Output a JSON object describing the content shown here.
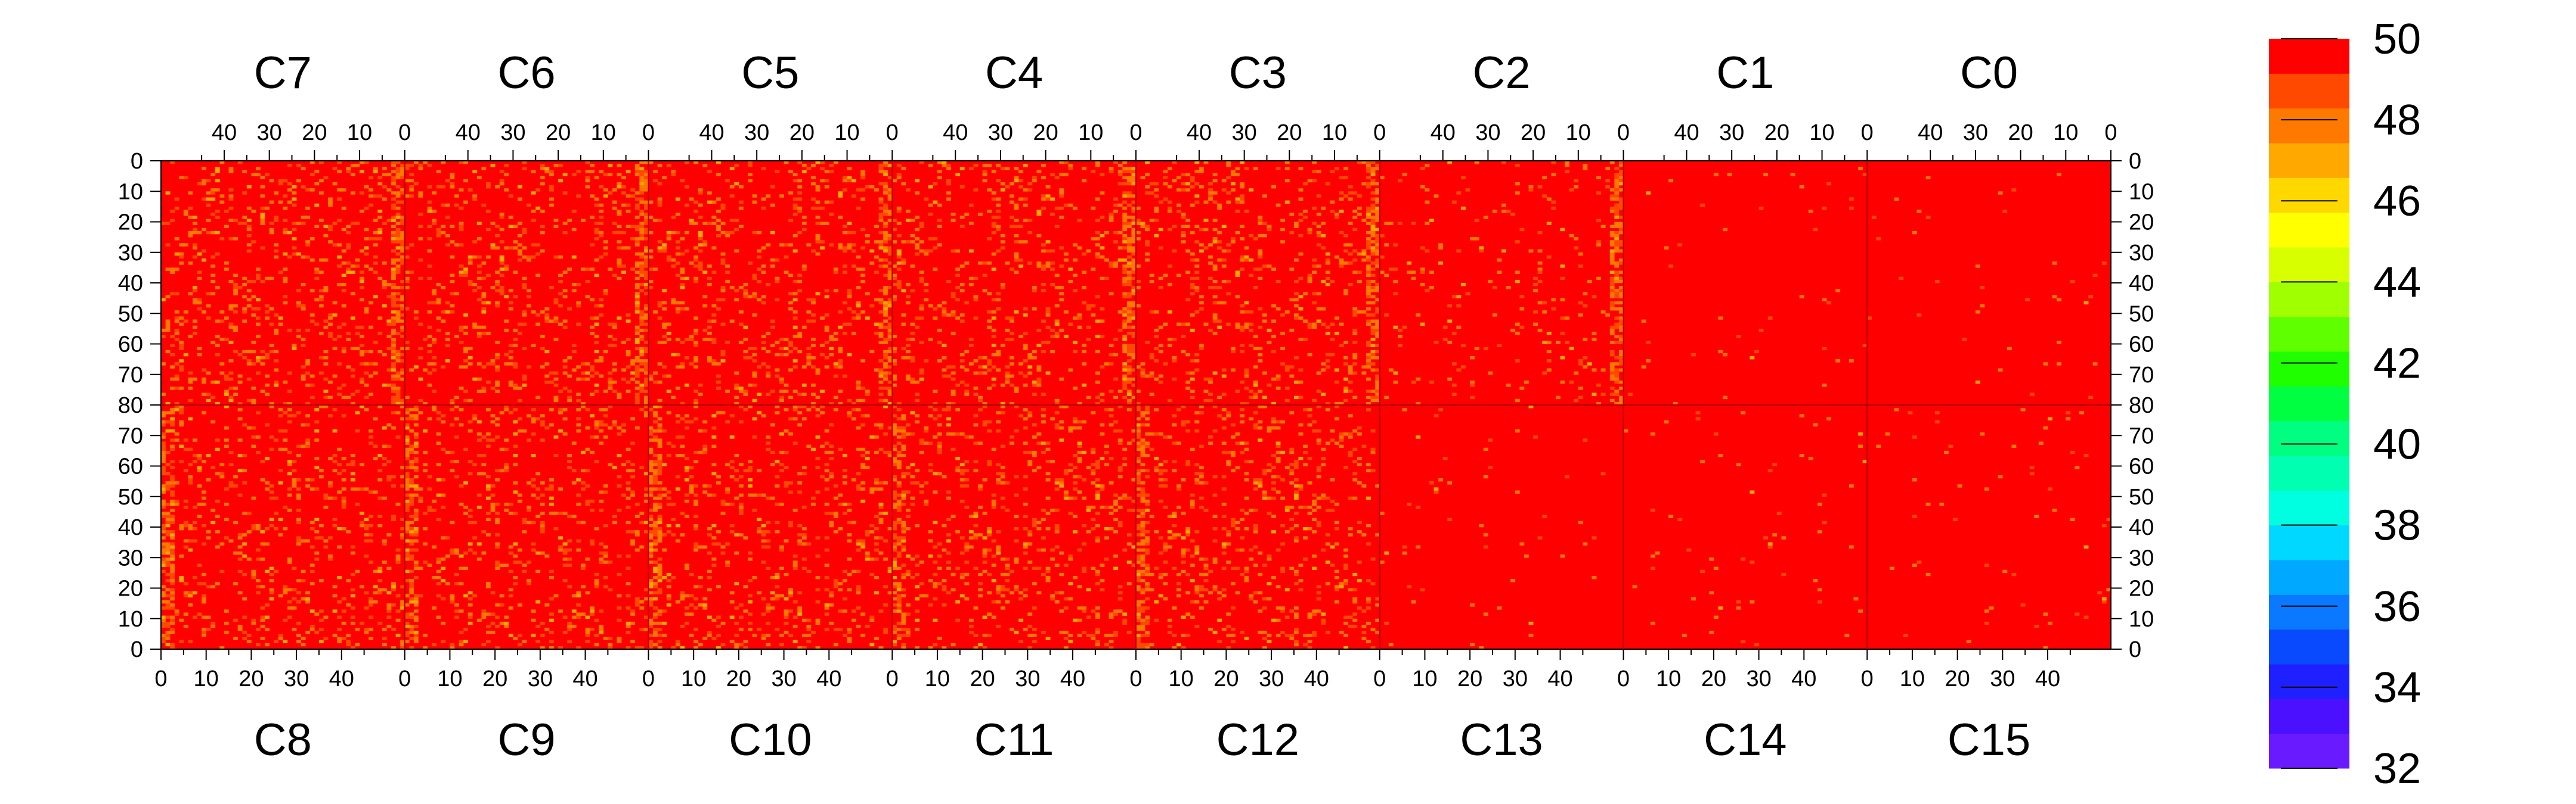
{
  "chart_data": {
    "type": "heatmap",
    "title": "",
    "top_groups": [
      "C7",
      "C6",
      "C5",
      "C4",
      "C3",
      "C2",
      "C1",
      "C0"
    ],
    "bottom_groups": [
      "C8",
      "C9",
      "C10",
      "C11",
      "C12",
      "C13",
      "C14",
      "C15"
    ],
    "top_x_ticks": [
      "40",
      "30",
      "20",
      "10",
      "0"
    ],
    "top_x_tick_values": [
      40,
      30,
      20,
      10,
      0
    ],
    "bottom_x_ticks": [
      "0",
      "10",
      "20",
      "30",
      "40"
    ],
    "bottom_x_tick_values": [
      0,
      10,
      20,
      30,
      40
    ],
    "x_range_per_group": [
      0,
      54
    ],
    "y_ticks_top": [
      "0",
      "10",
      "20",
      "30",
      "40",
      "50",
      "60",
      "70",
      "80"
    ],
    "y_tick_values_top": [
      0,
      10,
      20,
      30,
      40,
      50,
      60,
      70,
      80
    ],
    "y_ticks_bottom": [
      "70",
      "60",
      "50",
      "40",
      "30",
      "20",
      "10",
      "0"
    ],
    "y_tick_values_bottom": [
      70,
      60,
      50,
      40,
      30,
      20,
      10,
      0
    ],
    "y_range_each_half": [
      0,
      80
    ],
    "z_range": [
      32,
      50
    ],
    "colorbar_ticks": [
      "50",
      "48",
      "46",
      "44",
      "42",
      "40",
      "38",
      "36",
      "34",
      "32"
    ],
    "colorbar_tick_values": [
      50,
      48,
      46,
      44,
      42,
      40,
      38,
      36,
      34,
      32
    ],
    "colorbar_colors": [
      "#6a1aff",
      "#4a10ff",
      "#1f20ff",
      "#0a4aff",
      "#0a78ff",
      "#00a8ff",
      "#00d8ff",
      "#00ffe0",
      "#00ffb0",
      "#00ff80",
      "#00ff40",
      "#20ff00",
      "#60ff00",
      "#a0ff00",
      "#d8ff00",
      "#ffff00",
      "#ffd800",
      "#ffa800",
      "#ff7800",
      "#ff4800",
      "#ff0000"
    ],
    "dominant_value": 50,
    "noise_level_by_group": {
      "C0": "low",
      "C1": "low",
      "C2": "medium",
      "C3": "high",
      "C4": "high",
      "C5": "high",
      "C6": "high",
      "C7": "high",
      "C8": "high",
      "C9": "high",
      "C10": "high",
      "C11": "high",
      "C12": "high",
      "C13": "low",
      "C14": "low",
      "C15": "low"
    }
  }
}
